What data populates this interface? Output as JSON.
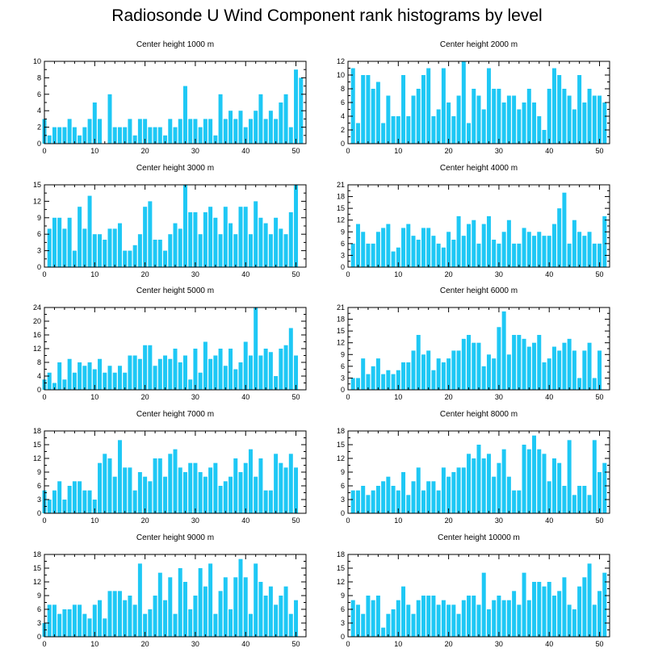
{
  "title": "Radiosonde U Wind Component rank histograms by level",
  "bar_color": "#1ec8f5",
  "chart_data": [
    {
      "type": "bar",
      "title": "Center height 1000 m",
      "xlim": [
        0,
        52
      ],
      "ylim": [
        0,
        10
      ],
      "xticks": [
        0,
        10,
        20,
        30,
        40,
        50
      ],
      "yticks": [
        0,
        2,
        4,
        6,
        8,
        10
      ],
      "values": [
        3,
        1,
        2,
        2,
        2,
        3,
        2,
        1,
        2,
        3,
        5,
        3,
        0,
        6,
        2,
        2,
        2,
        3,
        1,
        3,
        3,
        2,
        2,
        2,
        1,
        3,
        2,
        3,
        7,
        3,
        3,
        2,
        3,
        3,
        1,
        6,
        3,
        4,
        3,
        4,
        2,
        3,
        4,
        6,
        3,
        4,
        3,
        5,
        6,
        2,
        9,
        8
      ]
    },
    {
      "type": "bar",
      "title": "Center height 2000 m",
      "xlim": [
        0,
        52
      ],
      "ylim": [
        0,
        12
      ],
      "xticks": [
        0,
        10,
        20,
        30,
        40,
        50
      ],
      "yticks": [
        0,
        2,
        4,
        6,
        8,
        10,
        12
      ],
      "values": [
        0,
        11,
        3,
        10,
        10,
        8,
        9,
        3,
        7,
        4,
        4,
        10,
        4,
        7,
        8,
        10,
        11,
        4,
        5,
        11,
        6,
        4,
        7,
        12,
        3,
        8,
        7,
        5,
        11,
        8,
        8,
        6,
        7,
        7,
        5,
        6,
        8,
        6,
        4,
        2,
        8,
        11,
        10,
        8,
        7,
        5,
        10,
        6,
        8,
        7,
        7,
        6
      ]
    },
    {
      "type": "bar",
      "title": "Center height 3000 m",
      "xlim": [
        0,
        52
      ],
      "ylim": [
        0,
        15
      ],
      "xticks": [
        0,
        10,
        20,
        30,
        40,
        50
      ],
      "yticks": [
        0,
        3,
        6,
        9,
        12,
        15
      ],
      "values": [
        0,
        7,
        9,
        9,
        7,
        9,
        3,
        11,
        7,
        13,
        6,
        6,
        5,
        7,
        7,
        8,
        3,
        3,
        4,
        6,
        11,
        12,
        5,
        5,
        3,
        6,
        8,
        7,
        15,
        10,
        10,
        6,
        10,
        11,
        9,
        6,
        11,
        8,
        6,
        11,
        11,
        6,
        12,
        9,
        8,
        6,
        9,
        7,
        6,
        10,
        15,
        0
      ]
    },
    {
      "type": "bar",
      "title": "Center height 4000 m",
      "xlim": [
        0,
        52
      ],
      "ylim": [
        0,
        21
      ],
      "xticks": [
        0,
        10,
        20,
        30,
        40,
        50
      ],
      "yticks": [
        0,
        3,
        6,
        9,
        12,
        15,
        18,
        21
      ],
      "values": [
        0,
        6,
        11,
        9,
        6,
        6,
        9,
        10,
        11,
        4,
        5,
        10,
        11,
        8,
        7,
        10,
        10,
        8,
        6,
        5,
        9,
        7,
        13,
        8,
        11,
        12,
        6,
        11,
        13,
        7,
        6,
        9,
        12,
        6,
        6,
        10,
        9,
        8,
        9,
        8,
        8,
        11,
        15,
        19,
        6,
        12,
        9,
        8,
        9,
        6,
        6,
        13
      ]
    },
    {
      "type": "bar",
      "title": "Center height 5000 m",
      "xlim": [
        0,
        52
      ],
      "ylim": [
        0,
        24
      ],
      "xticks": [
        0,
        10,
        20,
        30,
        40,
        50
      ],
      "yticks": [
        0,
        4,
        8,
        12,
        16,
        20,
        24
      ],
      "values": [
        3,
        5,
        2,
        8,
        3,
        9,
        5,
        8,
        7,
        8,
        6,
        9,
        5,
        7,
        5,
        7,
        5,
        10,
        10,
        9,
        13,
        13,
        7,
        9,
        10,
        9,
        12,
        8,
        10,
        3,
        12,
        5,
        14,
        9,
        10,
        12,
        7,
        12,
        6,
        8,
        14,
        10,
        24,
        10,
        12,
        11,
        4,
        12,
        13,
        18,
        10,
        0
      ]
    },
    {
      "type": "bar",
      "title": "Center height 6000 m",
      "xlim": [
        0,
        52
      ],
      "ylim": [
        0,
        21
      ],
      "xticks": [
        0,
        10,
        20,
        30,
        40,
        50
      ],
      "yticks": [
        0,
        3,
        6,
        9,
        12,
        15,
        18,
        21
      ],
      "values": [
        0,
        3,
        3,
        8,
        4,
        6,
        8,
        4,
        5,
        4,
        5,
        7,
        7,
        10,
        14,
        9,
        10,
        5,
        8,
        7,
        8,
        10,
        10,
        13,
        14,
        12,
        12,
        6,
        9,
        8,
        16,
        20,
        9,
        14,
        14,
        13,
        11,
        12,
        14,
        7,
        8,
        11,
        10,
        12,
        13,
        10,
        3,
        10,
        12,
        3,
        10,
        0
      ]
    },
    {
      "type": "bar",
      "title": "Center height 7000 m",
      "xlim": [
        0,
        52
      ],
      "ylim": [
        0,
        18
      ],
      "xticks": [
        0,
        10,
        20,
        30,
        40,
        50
      ],
      "yticks": [
        0,
        3,
        6,
        9,
        12,
        15,
        18
      ],
      "values": [
        5,
        3,
        5,
        7,
        3,
        6,
        7,
        7,
        5,
        5,
        3,
        11,
        13,
        12,
        8,
        16,
        10,
        10,
        5,
        9,
        8,
        7,
        12,
        12,
        8,
        13,
        14,
        10,
        9,
        11,
        11,
        9,
        8,
        10,
        11,
        6,
        7,
        8,
        12,
        9,
        11,
        14,
        8,
        12,
        5,
        5,
        13,
        11,
        10,
        13,
        10,
        0
      ]
    },
    {
      "type": "bar",
      "title": "Center height 8000 m",
      "xlim": [
        0,
        52
      ],
      "ylim": [
        0,
        18
      ],
      "xticks": [
        0,
        10,
        20,
        30,
        40,
        50
      ],
      "yticks": [
        0,
        3,
        6,
        9,
        12,
        15,
        18
      ],
      "values": [
        0,
        5,
        5,
        6,
        4,
        5,
        6,
        7,
        8,
        6,
        5,
        9,
        4,
        7,
        10,
        5,
        7,
        7,
        5,
        10,
        8,
        9,
        10,
        10,
        13,
        12,
        15,
        12,
        13,
        8,
        11,
        14,
        8,
        5,
        5,
        15,
        14,
        17,
        14,
        13,
        7,
        12,
        11,
        6,
        16,
        4,
        6,
        6,
        4,
        16,
        9,
        11
      ]
    },
    {
      "type": "bar",
      "title": "Center height 9000 m",
      "xlim": [
        0,
        52
      ],
      "ylim": [
        0,
        18
      ],
      "xticks": [
        0,
        10,
        20,
        30,
        40,
        50
      ],
      "yticks": [
        0,
        3,
        6,
        9,
        12,
        15,
        18
      ],
      "values": [
        3,
        7,
        7,
        5,
        6,
        6,
        7,
        7,
        5,
        4,
        7,
        8,
        4,
        10,
        10,
        10,
        8,
        9,
        7,
        16,
        5,
        6,
        9,
        14,
        8,
        13,
        5,
        15,
        12,
        6,
        9,
        15,
        11,
        16,
        5,
        10,
        13,
        6,
        13,
        17,
        13,
        5,
        16,
        12,
        9,
        11,
        7,
        9,
        11,
        5,
        8,
        0
      ]
    },
    {
      "type": "bar",
      "title": "Center height 10000 m",
      "xlim": [
        0,
        52
      ],
      "ylim": [
        0,
        18
      ],
      "xticks": [
        0,
        10,
        20,
        30,
        40,
        50
      ],
      "yticks": [
        0,
        3,
        6,
        9,
        12,
        15,
        18
      ],
      "values": [
        0,
        8,
        7,
        5,
        9,
        8,
        9,
        2,
        5,
        6,
        8,
        11,
        7,
        5,
        8,
        9,
        9,
        9,
        7,
        8,
        7,
        7,
        5,
        8,
        9,
        9,
        7,
        14,
        6,
        8,
        9,
        8,
        8,
        10,
        7,
        14,
        8,
        12,
        12,
        11,
        12,
        9,
        10,
        13,
        7,
        6,
        11,
        13,
        16,
        7,
        10,
        14
      ]
    }
  ]
}
